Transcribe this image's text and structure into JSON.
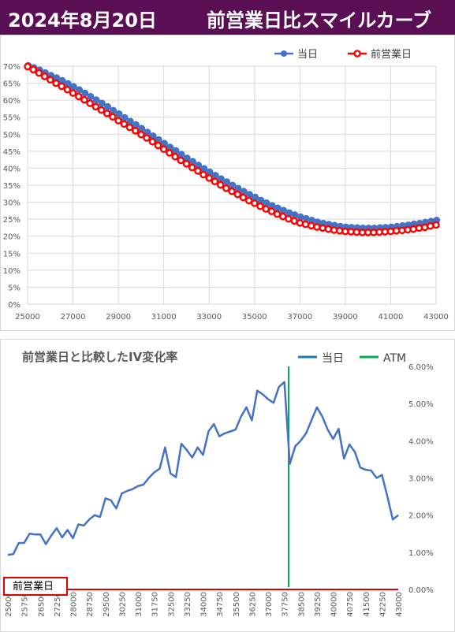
{
  "header": {
    "date": "2024年8月20日",
    "title": "前営業日比スマイルカーブ"
  },
  "colors": {
    "banner": "#5a0f55",
    "today": "#4472c4",
    "prev": "#ff0000",
    "atm": "#00b050",
    "ivline": "#4472c4",
    "zeroline": "#e00000"
  },
  "chart_data": [
    {
      "type": "line",
      "title": "",
      "legend": [
        "当日",
        "前営業日"
      ],
      "legend_position": "top-right",
      "grid": true,
      "xlim": [
        25000,
        43000
      ],
      "ylim": [
        0,
        70
      ],
      "x_ticks": [
        "25000",
        "27000",
        "29000",
        "31000",
        "33000",
        "35000",
        "37000",
        "39000",
        "41000",
        "43000"
      ],
      "y_ticks": [
        "0%",
        "5%",
        "10%",
        "15%",
        "20%",
        "25%",
        "30%",
        "35%",
        "40%",
        "45%",
        "50%",
        "55%",
        "60%",
        "65%",
        "70%"
      ],
      "x_start": 25000,
      "x_step": 250,
      "series": [
        {
          "name": "当日",
          "values": [
            69.9,
            69.3,
            68.6,
            67.8,
            67.0,
            66.3,
            65.5,
            64.6,
            63.7,
            62.8,
            61.8,
            60.8,
            59.8,
            58.8,
            57.8,
            56.7,
            55.7,
            54.6,
            53.5,
            52.5,
            51.4,
            50.3,
            49.2,
            48.1,
            47.0,
            45.9,
            44.9,
            43.8,
            42.7,
            41.7,
            40.6,
            39.6,
            38.6,
            37.6,
            36.6,
            35.7,
            34.7,
            33.8,
            32.9,
            32.0,
            31.2,
            30.3,
            29.5,
            28.7,
            28.0,
            27.3,
            26.6,
            26.0,
            25.4,
            24.9,
            24.4,
            23.9,
            23.5,
            23.2,
            22.9,
            22.6,
            22.4,
            22.3,
            22.2,
            22.1,
            22.1,
            22.1,
            22.2,
            22.3,
            22.4,
            22.6,
            22.8,
            23.0,
            23.3,
            23.5,
            23.8,
            24.1,
            24.4
          ]
        },
        {
          "name": "前営業日",
          "values": [
            69.9,
            69.0,
            68.0,
            67.0,
            66.0,
            65.0,
            64.1,
            63.1,
            62.1,
            61.1,
            60.1,
            59.1,
            58.1,
            57.1,
            56.1,
            55.1,
            54.0,
            53.0,
            52.0,
            51.0,
            49.9,
            48.9,
            47.8,
            46.7,
            45.6,
            44.5,
            43.4,
            42.3,
            41.3,
            40.2,
            39.2,
            38.1,
            37.1,
            36.1,
            35.1,
            34.1,
            33.2,
            32.3,
            31.4,
            30.5,
            29.7,
            28.8,
            28.0,
            27.3,
            26.5,
            25.8,
            25.1,
            24.5,
            23.9,
            23.5,
            23.1,
            22.7,
            22.4,
            22.1,
            21.8,
            21.6,
            21.4,
            21.3,
            21.2,
            21.1,
            21.1,
            21.1,
            21.2,
            21.3,
            21.4,
            21.6,
            21.7,
            21.9,
            22.1,
            22.4,
            22.6,
            23.0,
            23.3
          ]
        }
      ]
    },
    {
      "type": "line",
      "title": "前営業日と比較したIV変化率",
      "legend": [
        "当日",
        "ATM"
      ],
      "legend_position": "top-right",
      "grid": false,
      "xlim": [
        25000,
        43000
      ],
      "ylim": [
        0,
        6
      ],
      "y_ticks": [
        "0.00%",
        "1.00%",
        "2.00%",
        "3.00%",
        "4.00%",
        "5.00%",
        "6.00%"
      ],
      "x_start": 25000,
      "x_step": 250,
      "atm_x": 38000,
      "series": [
        {
          "name": "当日",
          "values": [
            0.93,
            0.95,
            1.25,
            1.25,
            1.5,
            1.48,
            1.48,
            1.22,
            1.45,
            1.65,
            1.4,
            1.6,
            1.38,
            1.75,
            1.72,
            1.88,
            2.0,
            1.95,
            2.45,
            2.4,
            2.18,
            2.58,
            2.65,
            2.7,
            2.78,
            2.82,
            3.0,
            3.15,
            3.25,
            3.82,
            3.12,
            3.02,
            3.92,
            3.75,
            3.55,
            3.82,
            3.62,
            4.25,
            4.45,
            4.12,
            4.2,
            4.25,
            4.3,
            4.65,
            4.9,
            4.55,
            5.35,
            5.25,
            5.12,
            5.02,
            5.45,
            5.58,
            3.38,
            3.85,
            4.0,
            4.2,
            4.55,
            4.9,
            4.65,
            4.3,
            4.05,
            4.32,
            3.52,
            3.9,
            3.7,
            3.28,
            3.22,
            3.2,
            3.0,
            3.08,
            2.5,
            1.88,
            2.0
          ]
        },
        {
          "name": "前営業日",
          "values": [
            0
          ]
        }
      ],
      "prev_label": "前営業日",
      "x_ticks": [
        "25000",
        "25750",
        "26500",
        "27250",
        "28000",
        "28750",
        "29500",
        "30250",
        "31000",
        "31750",
        "32500",
        "33250",
        "34000",
        "34750",
        "35500",
        "36250",
        "37000",
        "37750",
        "38500",
        "39250",
        "40000",
        "40750",
        "41500",
        "42250",
        "43000"
      ]
    }
  ]
}
